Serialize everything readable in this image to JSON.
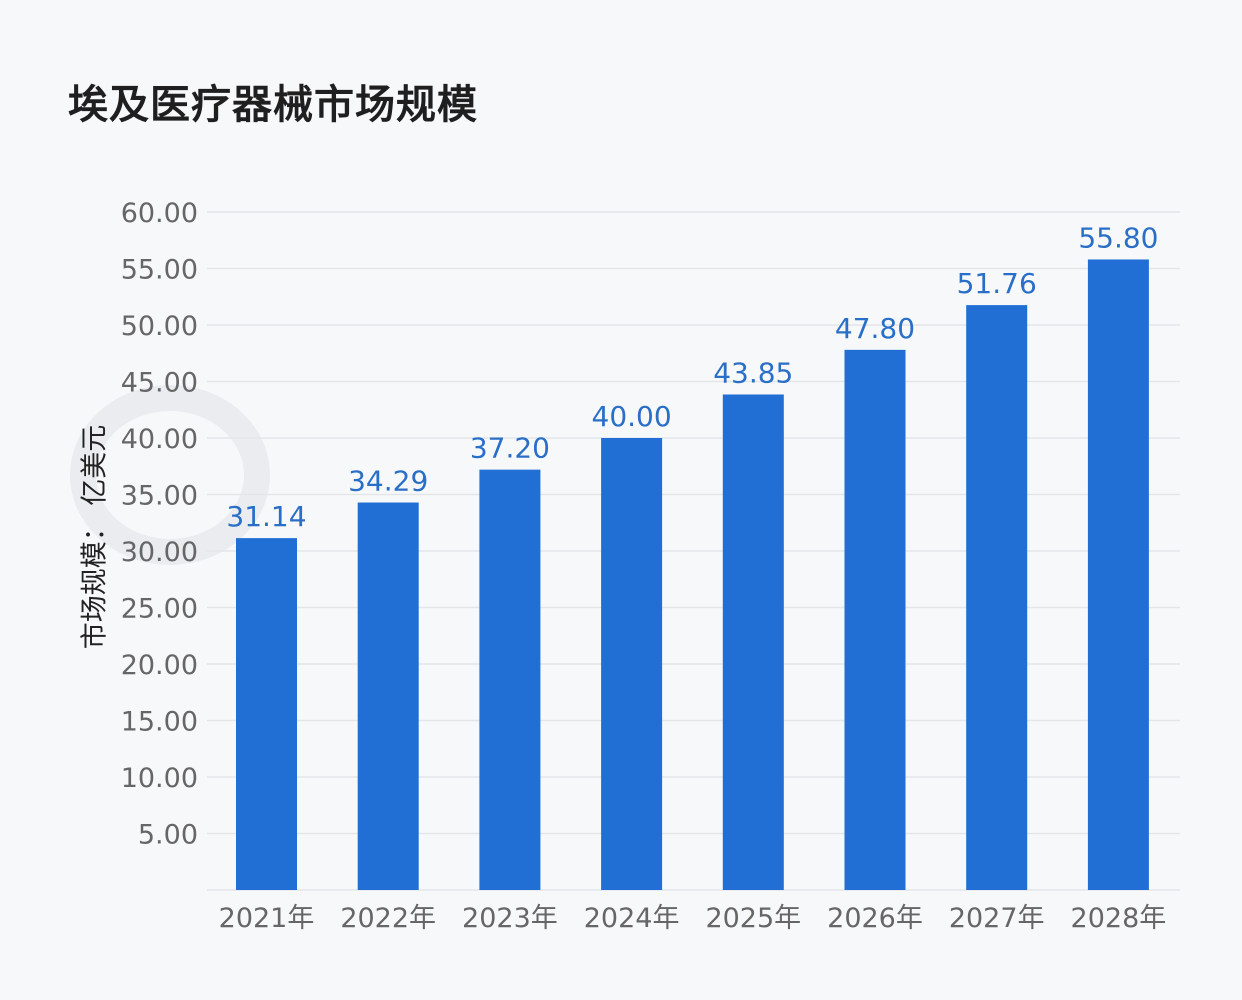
{
  "title": "埃及医疗器械市场规模",
  "colors": {
    "bar": "#216ed4",
    "value_label": "#2a6fc7",
    "tick_label": "#666666",
    "grid": "#e3e5e9"
  },
  "chart_data": {
    "type": "bar",
    "title": "埃及医疗器械市场规模",
    "xlabel": "",
    "ylabel": "市场规模： 亿美元",
    "categories": [
      "2021年",
      "2022年",
      "2023年",
      "2024年",
      "2025年",
      "2026年",
      "2027年",
      "2028年"
    ],
    "values": [
      31.14,
      34.29,
      37.2,
      40.0,
      43.85,
      47.8,
      51.76,
      55.8
    ],
    "value_labels": [
      "31.14",
      "34.29",
      "37.20",
      "40.00",
      "43.85",
      "47.80",
      "51.76",
      "55.80"
    ],
    "yticks": [
      "5.00",
      "10.00",
      "15.00",
      "20.00",
      "25.00",
      "30.00",
      "35.00",
      "40.00",
      "45.00",
      "50.00",
      "55.00",
      "60.00"
    ],
    "ylim": [
      0,
      60
    ],
    "grid": true,
    "legend": "none"
  }
}
